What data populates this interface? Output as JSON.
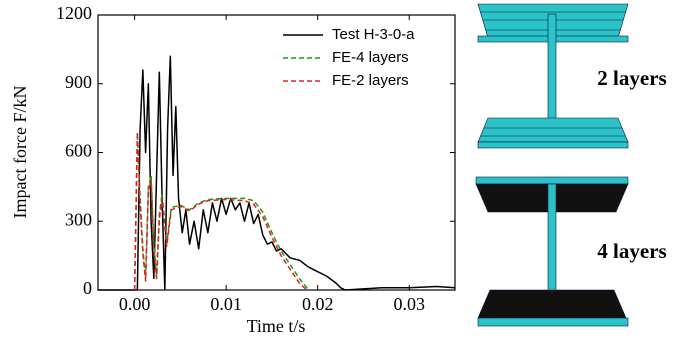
{
  "chart_data": {
    "type": "line",
    "x_label": "Time t/s",
    "y_label": "Impact force F/kN",
    "xlim": [
      -0.004,
      0.035
    ],
    "ylim": [
      0,
      1200
    ],
    "xticks": [
      {
        "value": 0,
        "label": "0.00"
      },
      {
        "value": 0.01,
        "label": "0.01"
      },
      {
        "value": 0.02,
        "label": "0.02"
      },
      {
        "value": 0.03,
        "label": "0.03"
      }
    ],
    "yticks": [
      0,
      300,
      600,
      900,
      1200
    ],
    "legend": "upper right",
    "series": [
      {
        "name": "Test H-3-0-a",
        "color": "#000000",
        "x": [
          -0.004,
          0,
          0.0003,
          0.0006,
          0.0009,
          0.0012,
          0.0015,
          0.0018,
          0.0021,
          0.0024,
          0.0027,
          0.003,
          0.0033,
          0.0036,
          0.0039,
          0.0042,
          0.0045,
          0.0048,
          0.0052,
          0.0056,
          0.006,
          0.0065,
          0.007,
          0.0075,
          0.008,
          0.0085,
          0.009,
          0.0095,
          0.01,
          0.0105,
          0.011,
          0.0115,
          0.012,
          0.0125,
          0.013,
          0.0135,
          0.014,
          0.0145,
          0.015,
          0.0155,
          0.016,
          0.017,
          0.018,
          0.019,
          0.02,
          0.021,
          0.022,
          0.0225,
          0.023,
          0.025,
          0.027,
          0.03,
          0.033,
          0.035
        ],
        "values": [
          0,
          0,
          0,
          700,
          960,
          600,
          900,
          300,
          50,
          500,
          950,
          400,
          0,
          700,
          1020,
          500,
          800,
          400,
          250,
          350,
          200,
          300,
          180,
          350,
          250,
          380,
          300,
          400,
          330,
          400,
          350,
          380,
          300,
          380,
          290,
          330,
          240,
          200,
          210,
          170,
          180,
          140,
          130,
          100,
          80,
          60,
          30,
          10,
          0,
          5,
          10,
          10,
          15,
          10
        ]
      },
      {
        "name": "FE-4 layers",
        "color": "#1a9a1a",
        "x": [
          0,
          0.0003,
          0.0006,
          0.0009,
          0.0012,
          0.0015,
          0.0018,
          0.0021,
          0.0024,
          0.0027,
          0.003,
          0.0035,
          0.004,
          0.005,
          0.006,
          0.007,
          0.008,
          0.01,
          0.012,
          0.013,
          0.014,
          0.015,
          0.016,
          0.017,
          0.018,
          0.019
        ],
        "values": [
          0,
          670,
          400,
          180,
          50,
          450,
          500,
          200,
          60,
          330,
          420,
          200,
          360,
          370,
          350,
          380,
          395,
          400,
          400,
          390,
          340,
          250,
          170,
          110,
          50,
          0
        ]
      },
      {
        "name": "FE-2 layers",
        "color": "#e02020",
        "x": [
          0,
          0.0003,
          0.0006,
          0.0009,
          0.0012,
          0.0015,
          0.0018,
          0.0021,
          0.0024,
          0.0027,
          0.003,
          0.0035,
          0.004,
          0.005,
          0.006,
          0.007,
          0.008,
          0.01,
          0.012,
          0.013,
          0.014,
          0.015,
          0.016,
          0.017,
          0.018,
          0.0188
        ],
        "values": [
          0,
          690,
          380,
          160,
          40,
          430,
          480,
          180,
          50,
          310,
          400,
          190,
          350,
          365,
          345,
          375,
          390,
          395,
          390,
          375,
          320,
          230,
          150,
          90,
          30,
          0
        ]
      }
    ]
  },
  "panels": [
    {
      "label": "2 layers"
    },
    {
      "label": "4 layers"
    }
  ]
}
